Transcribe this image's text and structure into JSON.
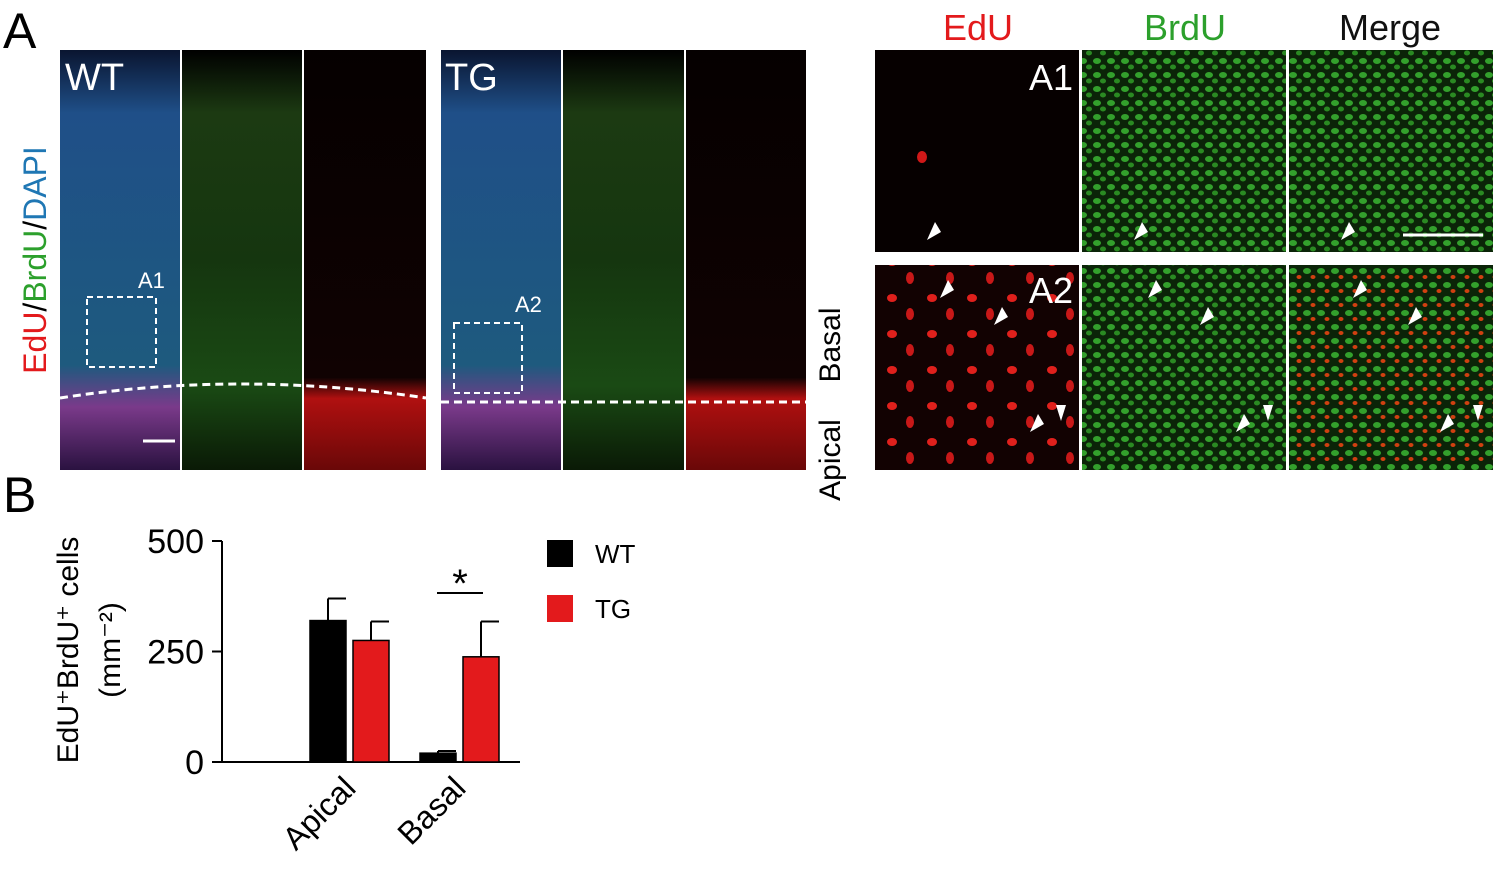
{
  "panel_labels": [
    "A",
    "B"
  ],
  "panel_a": {
    "stain_label": {
      "edu": "EdU",
      "sep1": "/",
      "brdu": "BrdU",
      "sep2": "/",
      "dapi": "DAPI"
    },
    "groups": [
      "WT",
      "TG"
    ],
    "inset_labels": [
      "A1",
      "A2"
    ],
    "columns": [
      "EdU",
      "BrdU",
      "Merge"
    ],
    "rows": [
      "A1",
      "A2"
    ],
    "zones": [
      "Basal",
      "Apical"
    ]
  },
  "chart_data": {
    "type": "bar",
    "y_label": [
      "EdU⁺BrdU⁺ cells",
      "(mm⁻²)"
    ],
    "categories": [
      "Apical",
      "Basal"
    ],
    "series": [
      {
        "name": "WT",
        "color": "#000000",
        "values": [
          320,
          20
        ],
        "errors": [
          50,
          5
        ]
      },
      {
        "name": "TG",
        "color": "#e31a1c",
        "values": [
          275,
          238
        ],
        "errors": [
          43,
          80
        ]
      }
    ],
    "ylim": [
      0,
      500
    ],
    "yticks": [
      0,
      250,
      500
    ],
    "annotation": "*"
  }
}
